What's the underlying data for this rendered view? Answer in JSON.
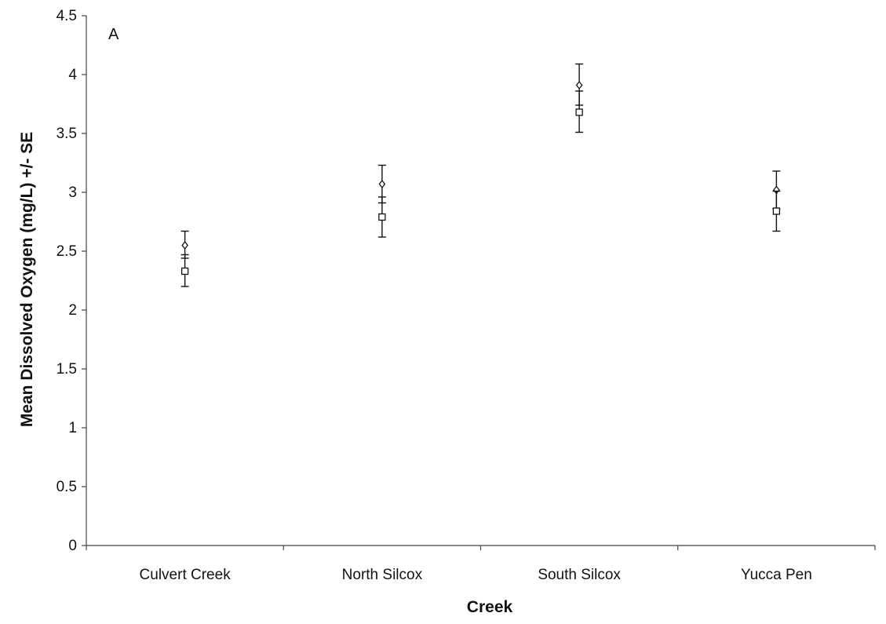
{
  "chart_data": {
    "type": "scatter",
    "panel_label": "A",
    "xlabel": "Creek",
    "ylabel": "Mean Dissolved Oxygen (mg/L) +/- SE",
    "ylim": [
      0,
      4.5
    ],
    "y_ticks": [
      "0",
      "0.5",
      "1",
      "1.5",
      "2",
      "2.5",
      "3",
      "3.5",
      "4",
      "4.5"
    ],
    "y_tick_values": [
      0,
      0.5,
      1,
      1.5,
      2,
      2.5,
      3,
      3.5,
      4,
      4.5
    ],
    "categories": [
      "Culvert Creek",
      "North Silcox",
      "South Silcox",
      "Yucca Pen"
    ],
    "grid": false,
    "legend": "none",
    "series": [
      {
        "marker": "diamond",
        "values": [
          2.55,
          3.07,
          3.91,
          3.02
        ],
        "upper": [
          2.67,
          3.23,
          4.09,
          3.18
        ],
        "lower": [
          2.44,
          2.91,
          3.74,
          2.86
        ]
      },
      {
        "marker": "square",
        "values": [
          2.33,
          2.79,
          3.68,
          2.84
        ],
        "upper": [
          2.47,
          2.96,
          3.86,
          3.01
        ],
        "lower": [
          2.2,
          2.62,
          3.51,
          2.67
        ]
      }
    ],
    "colors": {
      "axis": "#444444",
      "marker": "#111111",
      "background": "#ffffff"
    }
  }
}
